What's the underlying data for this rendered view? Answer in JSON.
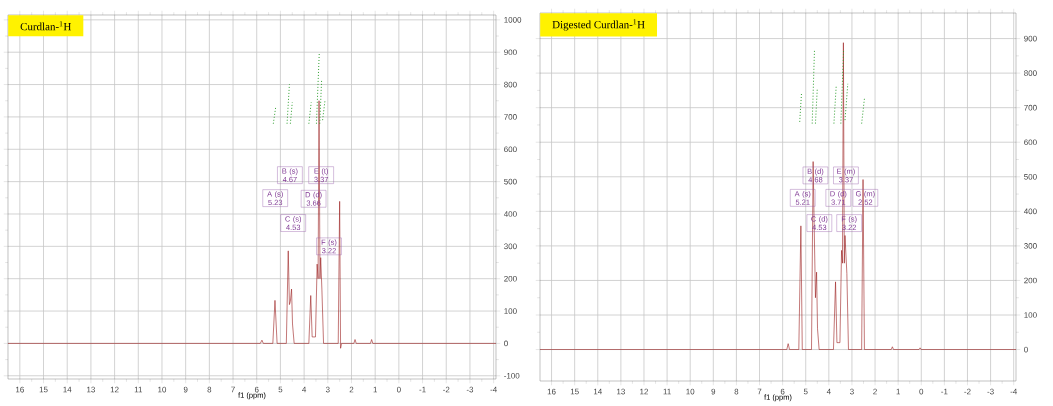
{
  "chart_data": [
    {
      "type": "line",
      "title": "Curdlan-$^{1}$H",
      "xlabel": "f1 (ppm)",
      "xlim": [
        16.5,
        -4.1
      ],
      "ylim": [
        -110,
        1015
      ],
      "xticks": [
        16,
        15,
        14,
        13,
        12,
        11,
        10,
        9,
        8,
        7,
        6,
        5,
        4,
        3,
        2,
        1,
        0,
        -1,
        -2,
        -3,
        -4
      ],
      "yticks": [
        -100,
        0,
        100,
        200,
        300,
        400,
        500,
        600,
        700,
        800,
        900,
        1000
      ],
      "grid": true,
      "series": [
        {
          "color": "#9b1c1c",
          "line_style": "solid",
          "x": [
            16.5,
            5.85,
            5.78,
            5.72,
            5.32,
            5.23,
            5.14,
            4.75,
            4.67,
            4.62,
            4.58,
            4.53,
            4.49,
            4.42,
            3.8,
            3.72,
            3.66,
            3.52,
            3.45,
            3.41,
            3.37,
            3.33,
            3.3,
            3.25,
            3.18,
            2.56,
            2.5,
            2.46,
            2.42,
            1.9,
            1.85,
            1.8,
            1.2,
            1.15,
            1.1,
            -4.1
          ],
          "values": [
            0,
            0,
            10,
            0,
            0,
            133,
            0,
            0,
            286,
            120,
            130,
            168,
            60,
            0,
            0,
            148,
            20,
            20,
            245,
            200,
            750,
            200,
            265,
            168,
            0,
            0,
            439,
            -15,
            0,
            0,
            12,
            0,
            0,
            12,
            0,
            0
          ]
        },
        {
          "color": "#2e9e2e",
          "line_style": "dotted",
          "x": [
            5.3,
            5.2,
            5.0,
            4.72,
            4.62,
            4.6,
            4.58,
            4.5,
            4.2,
            3.8,
            3.7,
            3.6,
            3.48,
            3.36,
            3.35,
            3.34,
            3.26,
            3.24,
            3.22,
            3.12
          ],
          "values": [
            679,
            730,
            null,
            679,
            801,
            null,
            679,
            745,
            null,
            679,
            745,
            null,
            679,
            898,
            null,
            679,
            816,
            null,
            690,
            750
          ]
        }
      ],
      "annotations": [
        {
          "text": "A (s) 5.23",
          "x": 5.22,
          "y": 449
        },
        {
          "text": "B (s) 4.67",
          "x": 4.6,
          "y": 520
        },
        {
          "text": "C (s) 4.53",
          "x": 4.46,
          "y": 372
        },
        {
          "text": "D (d) 3.66",
          "x": 3.6,
          "y": 447
        },
        {
          "text": "E (t) 3.37",
          "x": 3.28,
          "y": 520
        },
        {
          "text": "F (s) 3.22",
          "x": 2.95,
          "y": 300
        }
      ]
    },
    {
      "type": "line",
      "title": "Digested Curdlan-$^{1}$H",
      "xlabel": "f1 (ppm)",
      "xlim": [
        16.5,
        -4.1
      ],
      "ylim": [
        -91,
        974
      ],
      "xticks": [
        16,
        15,
        14,
        13,
        12,
        11,
        10,
        9,
        8,
        7,
        6,
        5,
        4,
        3,
        2,
        1,
        0,
        -1,
        -2,
        -3,
        -4
      ],
      "yticks": [
        0,
        100,
        200,
        300,
        400,
        500,
        600,
        700,
        800,
        900
      ],
      "grid": true,
      "series": [
        {
          "color": "#9b1c1c",
          "line_style": "solid",
          "x": [
            16.5,
            5.82,
            5.76,
            5.7,
            5.3,
            5.21,
            5.15,
            4.75,
            4.68,
            4.64,
            4.58,
            4.53,
            4.49,
            4.42,
            3.8,
            3.71,
            3.65,
            3.52,
            3.45,
            3.41,
            3.37,
            3.33,
            3.3,
            3.22,
            3.15,
            2.58,
            2.52,
            2.46,
            1.3,
            1.25,
            1.2,
            0.1,
            0.05,
            0.0,
            -4.1
          ],
          "values": [
            0,
            0,
            17,
            0,
            0,
            358,
            0,
            0,
            544,
            380,
            150,
            224,
            60,
            0,
            0,
            196,
            20,
            20,
            287,
            250,
            888,
            250,
            330,
            220,
            0,
            0,
            492,
            0,
            0,
            8,
            0,
            0,
            5,
            0,
            0
          ]
        },
        {
          "color": "#2e9e2e",
          "line_style": "dotted",
          "x": [
            5.26,
            5.18,
            5.0,
            4.72,
            4.62,
            4.6,
            4.58,
            4.5,
            4.2,
            3.78,
            3.68,
            3.6,
            3.48,
            3.36,
            3.33,
            3.3,
            3.18,
            2.9,
            2.58,
            2.46
          ],
          "values": [
            659,
            745,
            null,
            654,
            869,
            null,
            654,
            755,
            null,
            654,
            764,
            null,
            654,
            869,
            null,
            664,
            769,
            null,
            654,
            726
          ]
        }
      ],
      "annotations": [
        {
          "text": "A (s) 5.21",
          "x": 5.13,
          "y": 439
        },
        {
          "text": "B (d) 4.68",
          "x": 4.58,
          "y": 504
        },
        {
          "text": "C (d) 4.53",
          "x": 4.41,
          "y": 366
        },
        {
          "text": "D (d) 3.71",
          "x": 3.59,
          "y": 439
        },
        {
          "text": "E (m) 3.37",
          "x": 3.26,
          "y": 504
        },
        {
          "text": "F (s) 3.22",
          "x": 3.12,
          "y": 366
        },
        {
          "text": "G (m) 2.52",
          "x": 2.42,
          "y": 439
        }
      ]
    }
  ]
}
